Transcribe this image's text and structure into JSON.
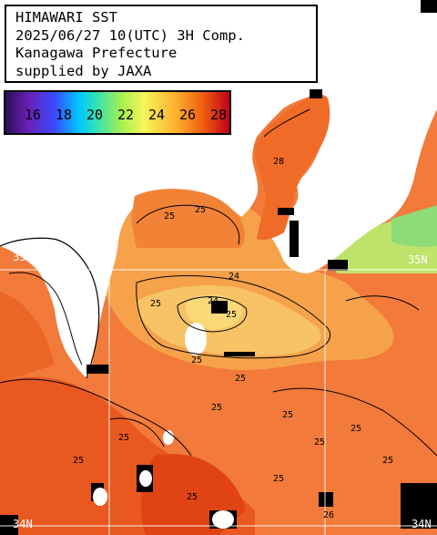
{
  "title": {
    "line1": "HIMAWARI SST",
    "line2": "2025/06/27 10(UTC) 3H Comp.",
    "line3": "Kanagawa Prefecture",
    "line4": "supplied by JAXA"
  },
  "colorbar": {
    "labels": [
      "16",
      "18",
      "20",
      "22",
      "24",
      "26",
      "28"
    ]
  },
  "grid": {
    "lat_labels": [
      "35N",
      "35N",
      "34N",
      "34N"
    ]
  },
  "contour_labels": [
    "28",
    "25",
    "25",
    "24",
    "24",
    "25",
    "25",
    "25",
    "25",
    "25",
    "25",
    "25",
    "25",
    "25",
    "25",
    "25",
    "26",
    "25",
    "25"
  ],
  "colors": {
    "warm": "#f27a3a",
    "hot": "#e84a1a",
    "mild": "#f6a850",
    "cool": "#f8d070",
    "green": "#a8e070",
    "land": "#ffffff",
    "missing": "#000000"
  }
}
